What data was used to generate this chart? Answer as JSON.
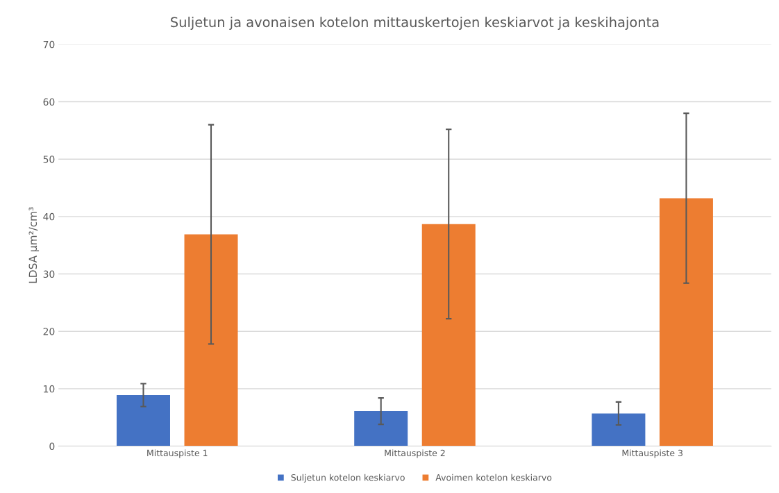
{
  "chart_data": {
    "type": "bar",
    "title": "Suljetun ja avonaisen kotelon mittauskertojen keskiarvot ja keskihajonta",
    "ylabel": "LDSA µm²/cm³",
    "categories": [
      "Mittauspiste 1",
      "Mittauspiste 2",
      "Mittauspiste 3"
    ],
    "series": [
      {
        "name": "Suljetun kotelon keskiarvo",
        "color": "#4472c4",
        "values": [
          8.9,
          6.1,
          5.7
        ],
        "errors": [
          2.0,
          2.3,
          2.0
        ]
      },
      {
        "name": "Avoimen kotelon keskiarvo",
        "color": "#ed7d31",
        "values": [
          36.9,
          38.7,
          43.2
        ],
        "errors": [
          19.1,
          16.5,
          14.8
        ]
      }
    ],
    "ylim": [
      0,
      70
    ],
    "yticks": [
      0,
      10,
      20,
      30,
      40,
      50,
      60,
      70
    ],
    "grid": "y",
    "legend": "bottom"
  }
}
